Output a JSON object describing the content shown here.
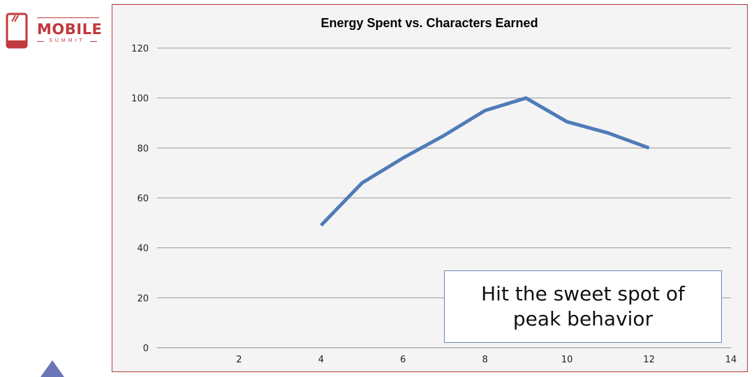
{
  "logo": {
    "title": "MOBILE",
    "subtitle": "SUMMIT",
    "icon": "phone-icon",
    "color": "#c0393b"
  },
  "callout": {
    "text": "Hit the sweet spot of peak behavior"
  },
  "chart_data": {
    "type": "line",
    "title": "Energy Spent vs. Characters Earned",
    "xlabel": "",
    "ylabel": "",
    "xlim": [
      0,
      14
    ],
    "ylim": [
      0,
      120
    ],
    "xticks": [
      2,
      4,
      6,
      8,
      10,
      12,
      14
    ],
    "yticks": [
      0,
      20,
      40,
      60,
      80,
      100,
      120
    ],
    "grid": true,
    "legend": "none",
    "series": [
      {
        "color": "#4f7bb8",
        "x": [
          4,
          5,
          6,
          7,
          8,
          9,
          10,
          11,
          12
        ],
        "y": [
          49,
          66,
          76,
          85,
          95,
          100,
          90.5,
          86,
          80
        ]
      }
    ]
  },
  "nav": {
    "icon": "triangle-up-icon",
    "color": "#6a76b8"
  }
}
